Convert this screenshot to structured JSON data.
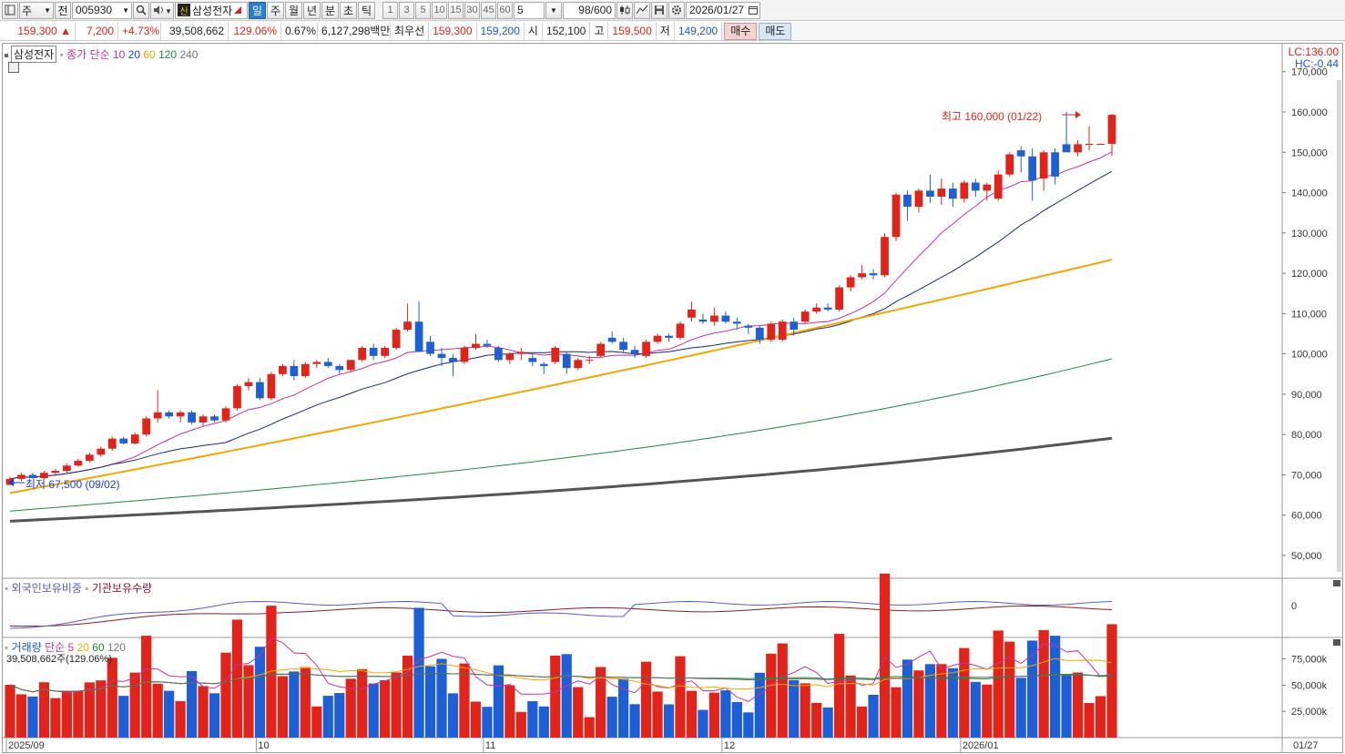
{
  "toolbar": {
    "market": "주",
    "prev_label": "전",
    "code": "005930",
    "stock_logo": "신",
    "stock_name": "삼성전자",
    "periods": [
      "일",
      "주",
      "월",
      "년",
      "분",
      "초",
      "틱"
    ],
    "active_period": "일",
    "intervals": [
      "1",
      "3",
      "5",
      "10",
      "15",
      "30",
      "45",
      "60"
    ],
    "interval_value": "5",
    "count": "98/600",
    "date": "2026/01/27"
  },
  "info": {
    "price": "159,300 ▲",
    "change": "7,200",
    "change_pct": "+4.73%",
    "volume": "39,508,662",
    "vol_ratio": "129.06%",
    "turnover": "0.67%",
    "amount": "6,127,298백만",
    "best_label": "최우선",
    "best_ask": "159,300",
    "best_bid": "159,200",
    "open_label": "시",
    "open": "152,100",
    "high_label": "고",
    "high": "159,500",
    "low_label": "저",
    "low": "149,200",
    "buy_label": "매수",
    "sell_label": "매도"
  },
  "price_panel": {
    "title": "삼성전자",
    "ma_label": "종가 단순",
    "ma_periods": [
      "10",
      "20",
      "60",
      "120",
      "240"
    ],
    "lc": "LC:136.00",
    "hc": "HC:-0.44",
    "y_ticks": [
      "170,000",
      "160,000",
      "150,000",
      "140,000",
      "130,000",
      "120,000",
      "110,000",
      "100,000",
      "90,000",
      "80,000",
      "70,000",
      "60,000",
      "50,000"
    ],
    "high_annotation": "최고 160,000 (01/22)",
    "low_annotation": "최저 67,500 (09/02)"
  },
  "holding_panel": {
    "label_foreign": "외국인보유비중",
    "label_inst": "기관보유수량",
    "y_ticks": [
      "0"
    ]
  },
  "volume_panel": {
    "label": "거래량",
    "ma_label": "단순",
    "ma_periods": [
      "5",
      "20",
      "60",
      "120"
    ],
    "current": "39,508,662주(129.06%)",
    "y_ticks": [
      "75,000k",
      "50,000k",
      "25,000k"
    ]
  },
  "x_axis": {
    "labels": [
      "2025/09",
      "10",
      "11",
      "12",
      "2026/01"
    ],
    "right_label": "01/27"
  },
  "colors": {
    "up": "#e2231a",
    "down": "#1c5fd6",
    "ma10": "#c8329c",
    "ma20": "#1a2a6e",
    "ma60": "#f0a800",
    "ma120": "#1a8a3a",
    "ma240": "#555555"
  },
  "chart_data": {
    "type": "candlestick",
    "ylim": [
      45000,
      172000
    ],
    "ohlc": [
      [
        67500,
        69500,
        67500,
        69000
      ],
      [
        69000,
        70500,
        68500,
        70000
      ],
      [
        70000,
        70500,
        69000,
        69200
      ],
      [
        69200,
        71000,
        69000,
        70500
      ],
      [
        70500,
        71500,
        70000,
        71000
      ],
      [
        71000,
        72800,
        70500,
        72300
      ],
      [
        72300,
        74000,
        72000,
        73500
      ],
      [
        73500,
        75500,
        73000,
        75000
      ],
      [
        75000,
        77000,
        74500,
        76500
      ],
      [
        76500,
        79500,
        76000,
        79000
      ],
      [
        79000,
        79500,
        77500,
        77800
      ],
      [
        77800,
        80500,
        77500,
        80000
      ],
      [
        80000,
        84500,
        79500,
        84000
      ],
      [
        84000,
        91000,
        83000,
        85500
      ],
      [
        85500,
        86000,
        84000,
        84500
      ],
      [
        84500,
        86000,
        83000,
        85500
      ],
      [
        85500,
        86000,
        82500,
        83000
      ],
      [
        83000,
        85000,
        82000,
        84500
      ],
      [
        84500,
        85000,
        83000,
        83500
      ],
      [
        83500,
        87000,
        83000,
        86500
      ],
      [
        86500,
        92500,
        86000,
        92000
      ],
      [
        92000,
        94000,
        91000,
        93000
      ],
      [
        93000,
        94000,
        88500,
        89000
      ],
      [
        89000,
        95500,
        88500,
        95000
      ],
      [
        95000,
        97500,
        94500,
        97000
      ],
      [
        97000,
        98500,
        93500,
        94500
      ],
      [
        94500,
        98000,
        94000,
        97500
      ],
      [
        97500,
        98500,
        96500,
        98000
      ],
      [
        98000,
        99000,
        96500,
        97000
      ],
      [
        97000,
        97500,
        95000,
        96000
      ],
      [
        96000,
        98500,
        95500,
        98500
      ],
      [
        98500,
        102000,
        98000,
        101500
      ],
      [
        101500,
        102500,
        98500,
        99500
      ],
      [
        99500,
        102000,
        99000,
        101500
      ],
      [
        101500,
        106500,
        101000,
        106000
      ],
      [
        106000,
        112500,
        105500,
        108000
      ],
      [
        108000,
        113000,
        101000,
        100500
      ],
      [
        103000,
        104500,
        99500,
        100000
      ],
      [
        100000,
        101500,
        97000,
        99000
      ],
      [
        99000,
        100000,
        94500,
        98000
      ],
      [
        98000,
        102000,
        97500,
        101500
      ],
      [
        101500,
        105000,
        101000,
        102500
      ],
      [
        102500,
        103500,
        101500,
        102000
      ],
      [
        101500,
        102000,
        98000,
        98500
      ],
      [
        98500,
        100500,
        97500,
        100000
      ],
      [
        100000,
        101500,
        98500,
        100500
      ],
      [
        99000,
        100000,
        97000,
        98000
      ],
      [
        97500,
        98000,
        95000,
        97000
      ],
      [
        98000,
        102000,
        97500,
        101500
      ],
      [
        100000,
        100500,
        95000,
        96500
      ],
      [
        96500,
        99000,
        96000,
        98500
      ],
      [
        98500,
        99500,
        97500,
        98500
      ],
      [
        99500,
        103000,
        99000,
        102500
      ],
      [
        104000,
        105500,
        102500,
        103000
      ],
      [
        103000,
        104000,
        100500,
        101000
      ],
      [
        101000,
        102000,
        99000,
        100000
      ],
      [
        99500,
        103500,
        99000,
        103000
      ],
      [
        103000,
        105000,
        102500,
        104500
      ],
      [
        104500,
        105000,
        103000,
        104000
      ],
      [
        104000,
        108000,
        103500,
        107500
      ],
      [
        109000,
        113000,
        108000,
        111000
      ],
      [
        108500,
        110000,
        107500,
        108000
      ],
      [
        108000,
        111500,
        107000,
        109500
      ],
      [
        109500,
        110500,
        107500,
        108000
      ],
      [
        108000,
        109000,
        106000,
        107500
      ],
      [
        107000,
        107500,
        105000,
        106500
      ],
      [
        106500,
        107000,
        102500,
        103500
      ],
      [
        103500,
        108000,
        103000,
        107500
      ],
      [
        103500,
        108500,
        103000,
        108000
      ],
      [
        108000,
        109000,
        104500,
        106000
      ],
      [
        108000,
        111000,
        107500,
        110500
      ],
      [
        110500,
        112500,
        110000,
        111500
      ],
      [
        111500,
        112500,
        110500,
        111000
      ],
      [
        111000,
        117000,
        110500,
        116500
      ],
      [
        116500,
        119500,
        115500,
        119000
      ],
      [
        119000,
        122000,
        118500,
        120000
      ],
      [
        120000,
        121000,
        118500,
        119500
      ],
      [
        119500,
        130000,
        119000,
        129000
      ],
      [
        129000,
        140000,
        128000,
        139500
      ],
      [
        139500,
        140500,
        133000,
        136500
      ],
      [
        136500,
        141000,
        135000,
        140500
      ],
      [
        140500,
        144500,
        137500,
        139000
      ],
      [
        139000,
        143500,
        137000,
        141000
      ],
      [
        141000,
        142500,
        136500,
        138500
      ],
      [
        138500,
        143000,
        137500,
        142500
      ],
      [
        142500,
        143500,
        139000,
        140500
      ],
      [
        140500,
        142500,
        138000,
        142000
      ],
      [
        138500,
        145500,
        138000,
        144500
      ],
      [
        144500,
        150000,
        144000,
        149500
      ],
      [
        150500,
        151500,
        145000,
        149000
      ],
      [
        149000,
        151000,
        138000,
        143000
      ],
      [
        143500,
        150500,
        140500,
        150000
      ],
      [
        150000,
        151000,
        142000,
        144000
      ],
      [
        152000,
        160000,
        151000,
        150000
      ],
      [
        150000,
        153000,
        149000,
        152000
      ],
      [
        152000,
        156500,
        150500,
        152100
      ],
      [
        152100,
        152200,
        152000,
        152100
      ],
      [
        152100,
        159500,
        149200,
        159300
      ]
    ]
  }
}
